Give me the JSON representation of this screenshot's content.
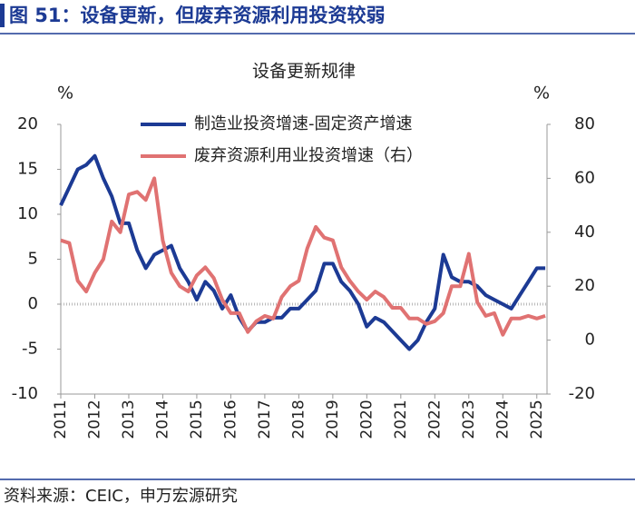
{
  "header": {
    "title": "图 51：设备更新，但废弃资源利用投资较弱"
  },
  "chart_data": {
    "type": "line",
    "title": "设备更新规律",
    "y_label": "%",
    "y2_label": "%",
    "x": [
      2011,
      2011.25,
      2011.5,
      2011.75,
      2012,
      2012.25,
      2012.5,
      2012.75,
      2013,
      2013.25,
      2013.5,
      2013.75,
      2014,
      2014.25,
      2014.5,
      2014.75,
      2015,
      2015.25,
      2015.5,
      2015.75,
      2016,
      2016.25,
      2016.5,
      2016.75,
      2017,
      2017.25,
      2017.5,
      2017.75,
      2018,
      2018.25,
      2018.5,
      2018.75,
      2019,
      2019.25,
      2019.5,
      2019.75,
      2020,
      2020.25,
      2020.5,
      2020.75,
      2021,
      2021.25,
      2021.5,
      2021.75,
      2022,
      2022.25,
      2022.5,
      2022.75,
      2023,
      2023.25,
      2023.5,
      2023.75,
      2024,
      2024.25,
      2024.5,
      2024.75,
      2025,
      2025.25
    ],
    "series": [
      {
        "name": "制造业投资增速-固定资产增速",
        "color": "#1c3a94",
        "axis": "y",
        "values": [
          11,
          13,
          15,
          15.5,
          16.5,
          14,
          12,
          9,
          9,
          6,
          4,
          5.5,
          6,
          6.5,
          4,
          2.5,
          0.5,
          2.5,
          1.5,
          -0.5,
          1,
          -1.5,
          -3,
          -2,
          -2,
          -1.5,
          -1.5,
          -0.5,
          -0.5,
          0.5,
          1.5,
          4.5,
          4.5,
          2.5,
          1.5,
          0,
          -2.5,
          -1.5,
          -2,
          -3,
          -4,
          -5,
          -4,
          -2,
          -0.5,
          5.5,
          3,
          2.5,
          2.5,
          2,
          1,
          0.5,
          0,
          -0.5,
          1,
          2.5,
          4,
          4
        ]
      },
      {
        "name": "废弃资源利用业投资增速（右）",
        "color": "#e07272",
        "axis": "y2",
        "values": [
          37,
          36,
          22,
          18,
          25,
          30,
          44,
          40,
          54,
          55,
          52,
          60,
          37,
          25,
          20,
          18,
          24,
          27,
          23,
          15,
          10,
          10,
          3,
          7,
          9,
          8,
          16,
          20,
          22,
          34,
          42,
          38,
          37,
          27,
          22,
          18,
          15,
          18,
          16,
          12,
          12,
          8,
          8,
          6,
          7,
          10,
          20,
          20,
          32,
          14,
          9,
          10,
          2,
          8,
          8,
          9,
          8,
          9
        ]
      }
    ],
    "xlim": [
      2011,
      2025.3
    ],
    "xticks": [
      2011,
      2012,
      2013,
      2014,
      2015,
      2016,
      2017,
      2018,
      2019,
      2020,
      2021,
      2022,
      2023,
      2024,
      2025
    ],
    "ylim": [
      -10,
      20
    ],
    "yticks": [
      -10,
      -5,
      0,
      5,
      10,
      15,
      20
    ],
    "y2lim": [
      -20,
      80
    ],
    "y2ticks": [
      -20,
      0,
      20,
      40,
      60,
      80
    ],
    "legend": "top"
  },
  "source": "资料来源：CEIC，申万宏源研究"
}
